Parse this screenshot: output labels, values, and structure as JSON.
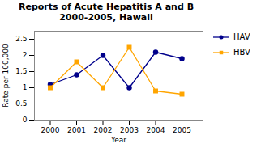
{
  "chart_data": {
    "type": "line",
    "title": "Reports of Acute Hepatitis A and B\n2000-2005, Hawaii",
    "xlabel": "Year",
    "ylabel": "Rate per 100,000",
    "x": [
      2000,
      2001,
      2002,
      2003,
      2004,
      2005
    ],
    "series": [
      {
        "name": "HAV",
        "color": "#00008B",
        "marker": "circle",
        "values": [
          1.1,
          1.4,
          2.0,
          1.0,
          2.1,
          1.9
        ]
      },
      {
        "name": "HBV",
        "color": "#FFA500",
        "marker": "square",
        "values": [
          1.0,
          1.8,
          1.0,
          2.25,
          0.9,
          0.8
        ]
      }
    ],
    "xlim": [
      1999.4,
      2005.8
    ],
    "xticks": [
      2000,
      2001,
      2002,
      2003,
      2004,
      2005
    ],
    "ylim": [
      0,
      2.75
    ],
    "yticks": [
      0,
      0.5,
      1.0,
      1.5,
      2.0,
      2.5
    ],
    "grid": false,
    "legend": "right"
  }
}
